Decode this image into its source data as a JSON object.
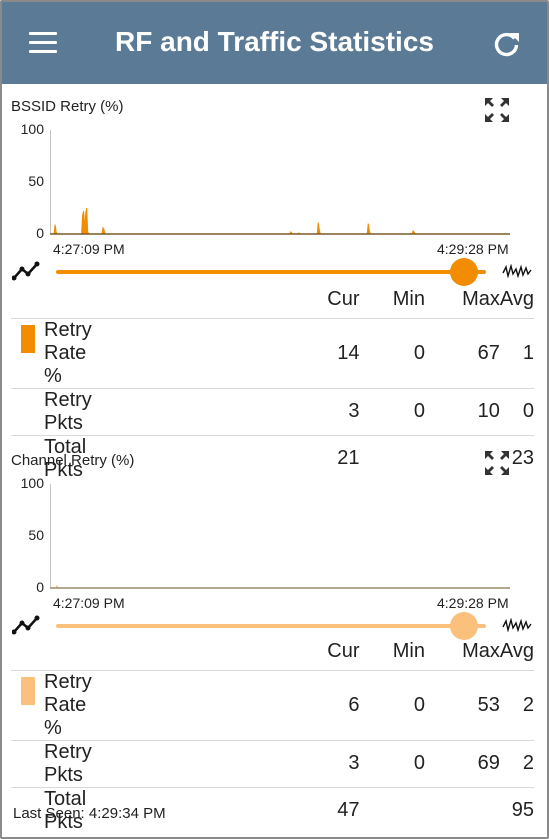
{
  "appbar": {
    "title": "RF and Traffic Statistics",
    "menu_icon": "hamburger-menu-icon",
    "refresh_icon": "refresh-icon"
  },
  "colors": {
    "appbar": "#5b7a96",
    "bssid_series": "#f28c00",
    "channel_series": "#fbc07c"
  },
  "bssid": {
    "chart_title": "BSSID Retry (%)",
    "y_ticks": [
      "100",
      "50",
      "0"
    ],
    "x_start": "4:27:09 PM",
    "x_end": "4:29:28 PM",
    "columns": [
      "Cur",
      "Min",
      "Max",
      "Avg"
    ],
    "rows": [
      {
        "label": "Retry Rate %",
        "cur": "14",
        "min": "0",
        "max": "67",
        "avg": "1"
      },
      {
        "label": "Retry Pkts",
        "cur": "3",
        "min": "0",
        "max": "10",
        "avg": "0"
      },
      {
        "label": "Total Pkts",
        "cur": "21",
        "min": "",
        "max": "",
        "avg": "23"
      }
    ]
  },
  "channel": {
    "chart_title": "Channel Retry (%)",
    "y_ticks": [
      "100",
      "50",
      "0"
    ],
    "x_start": "4:27:09 PM",
    "x_end": "4:29:28 PM",
    "columns": [
      "Cur",
      "Min",
      "Max",
      "Avg"
    ],
    "rows": [
      {
        "label": "Retry Rate %",
        "cur": "6",
        "min": "0",
        "max": "53",
        "avg": "2"
      },
      {
        "label": "Retry Pkts",
        "cur": "3",
        "min": "0",
        "max": "69",
        "avg": "2"
      },
      {
        "label": "Total Pkts",
        "cur": "47",
        "min": "",
        "max": "",
        "avg": "95"
      }
    ]
  },
  "footer": {
    "last_seen": "Last Seen:  4:29:34 PM"
  },
  "chart_data": [
    {
      "type": "area",
      "title": "BSSID Retry (%)",
      "ylim": [
        0,
        100
      ],
      "y_ticks": [
        0,
        50,
        100
      ],
      "x_range": [
        "4:27:09 PM",
        "4:29:28 PM"
      ],
      "series": [
        {
          "values": [
            0,
            0,
            0,
            9,
            2,
            0,
            0,
            0,
            0,
            0,
            0,
            0,
            0,
            0,
            0,
            0,
            0,
            0,
            0,
            0,
            0,
            0,
            0,
            0,
            0,
            0,
            0,
            0,
            0,
            0,
            18,
            22,
            5,
            20,
            25,
            2,
            0,
            0,
            0,
            0,
            0,
            0,
            0,
            0,
            0,
            0,
            0,
            0,
            0,
            0,
            6,
            4,
            0,
            0,
            0,
            0,
            0,
            0,
            0,
            0,
            0,
            0,
            0,
            0,
            0,
            0,
            0,
            0,
            0,
            0,
            0,
            0,
            0,
            0,
            0,
            0,
            0,
            0,
            0,
            0,
            0,
            0,
            0,
            0,
            0,
            0,
            0,
            0,
            0,
            0,
            0,
            0,
            0,
            0,
            0,
            0,
            0,
            0,
            0,
            0,
            0,
            0,
            0,
            0,
            0,
            0,
            0,
            0,
            0,
            0,
            0,
            0,
            0,
            0,
            0,
            0,
            0,
            0,
            0,
            0,
            0,
            0,
            0,
            0,
            0,
            0,
            0,
            0,
            0,
            0,
            0,
            0,
            0,
            0,
            0,
            0,
            0,
            0,
            0,
            0,
            0,
            0,
            0,
            0,
            0,
            0,
            0,
            0,
            0,
            0,
            0,
            0,
            0,
            0,
            0,
            0,
            0,
            0,
            0,
            0,
            0,
            0,
            0,
            0,
            0,
            0,
            0,
            0,
            0,
            0,
            0,
            0,
            0,
            0,
            0,
            0,
            0,
            0,
            0,
            0,
            0,
            0,
            0,
            0,
            0,
            0,
            0,
            0,
            0,
            0,
            0,
            0,
            0,
            0,
            0,
            0,
            0,
            0,
            0,
            0,
            0,
            0,
            0,
            0,
            0,
            0,
            0,
            0,
            0,
            0,
            0,
            0,
            0,
            0,
            0,
            0,
            0,
            0,
            0,
            0,
            0,
            0,
            0,
            0,
            0,
            0,
            0,
            0,
            0,
            0,
            0,
            0,
            0,
            0,
            2,
            1,
            0,
            0,
            0,
            0,
            0,
            0,
            1,
            0,
            0,
            0,
            0,
            0,
            0,
            0,
            0,
            0,
            0,
            0,
            0,
            0,
            0,
            0,
            0,
            0,
            0,
            11,
            4,
            0,
            0,
            0,
            0,
            0,
            0,
            0,
            0,
            0,
            0,
            0,
            0,
            0,
            0,
            0,
            0,
            0,
            0,
            0,
            0,
            0,
            0,
            0,
            0,
            0,
            0,
            0,
            0,
            0,
            0,
            0,
            0,
            0,
            0,
            0,
            0,
            0,
            0,
            0,
            0,
            0,
            0,
            0,
            0,
            0,
            0,
            0,
            10,
            4,
            0,
            0,
            0,
            0,
            0,
            0,
            0,
            0,
            0,
            0,
            0,
            0,
            0,
            0,
            0,
            0,
            0,
            0,
            0,
            0,
            0,
            0,
            0,
            0,
            0,
            0,
            0,
            0,
            0,
            0,
            0,
            0,
            0,
            0,
            0,
            0,
            0,
            0,
            0,
            0,
            0,
            0,
            3,
            2,
            0,
            0,
            0,
            0,
            0,
            0,
            0,
            0,
            0,
            0,
            0,
            0,
            0,
            0,
            0,
            0,
            0,
            0,
            0,
            0,
            0,
            0,
            0,
            0,
            0,
            0,
            0,
            0,
            0,
            0,
            0,
            0,
            0,
            0,
            0,
            0,
            0,
            0,
            0,
            0,
            0,
            0,
            0,
            0,
            0,
            0,
            0,
            0,
            0,
            0,
            0,
            0,
            0,
            0,
            0,
            0,
            0,
            0,
            0,
            0,
            0,
            0,
            0,
            0,
            0,
            0,
            0,
            0,
            0,
            0,
            0,
            0,
            0,
            0,
            0,
            0,
            0,
            0,
            0,
            0,
            0,
            0,
            0,
            0,
            0,
            0,
            0,
            0,
            0,
            0,
            0,
            0,
            0,
            0
          ]
        }
      ]
    },
    {
      "type": "area",
      "title": "Channel Retry (%)",
      "ylim": [
        0,
        100
      ],
      "y_ticks": [
        0,
        50,
        100
      ],
      "x_range": [
        "4:27:09 PM",
        "4:29:28 PM"
      ],
      "series": [
        {
          "values": [
            0,
            0,
            0,
            0,
            0,
            2,
            0,
            0,
            0,
            0,
            0,
            0,
            0,
            0,
            0,
            0,
            0,
            0,
            0,
            0,
            0,
            0,
            0,
            0,
            0,
            0,
            0,
            0,
            0,
            0,
            0,
            0,
            0,
            0,
            0,
            0,
            0,
            0,
            0,
            0,
            0,
            0,
            0,
            0,
            0,
            0,
            0,
            0,
            0,
            0,
            0,
            0,
            0,
            0,
            0,
            0,
            0,
            0,
            0,
            0,
            0,
            0,
            0,
            0,
            0,
            0,
            0,
            0,
            0,
            0,
            0,
            0,
            0,
            0,
            0,
            0,
            0,
            0,
            0,
            0,
            0,
            0,
            0,
            0,
            0,
            0,
            0,
            0,
            0,
            0,
            0,
            0,
            0,
            0,
            0,
            0,
            0,
            0,
            0,
            0,
            0,
            0,
            0,
            0,
            0,
            0,
            0,
            0,
            0,
            0,
            0,
            0,
            0,
            0,
            0,
            0,
            0,
            0,
            0,
            0,
            0,
            0,
            0,
            0,
            0,
            0,
            0,
            0,
            0,
            0,
            0,
            0,
            0,
            0,
            0,
            0,
            0,
            0,
            0,
            0,
            0,
            0,
            0,
            0,
            0,
            0,
            0,
            0,
            0,
            0,
            0,
            0,
            0,
            0,
            0,
            0,
            0,
            0,
            0,
            0,
            0,
            0,
            0,
            0,
            0,
            0,
            0,
            0,
            0,
            0,
            0,
            0,
            0,
            0,
            0,
            0,
            0,
            0,
            0,
            0,
            0,
            0,
            0,
            0,
            0,
            0,
            0,
            0,
            0,
            0,
            0,
            0,
            0,
            0,
            0,
            0,
            0,
            0,
            0,
            0,
            0,
            0,
            0,
            0,
            0,
            0,
            0,
            0,
            0,
            0,
            0,
            0,
            0,
            0,
            0,
            0,
            0,
            0,
            0,
            0,
            0,
            0,
            0,
            0,
            0,
            0,
            0,
            0,
            0,
            0,
            0,
            0,
            0,
            0,
            0,
            0,
            0,
            0,
            0,
            0,
            0,
            0,
            0,
            0,
            0,
            0,
            0,
            0,
            0,
            0,
            0,
            0,
            0,
            0,
            0,
            0,
            0,
            0,
            0,
            0,
            0,
            0,
            0,
            0,
            0,
            0,
            0,
            0,
            0,
            0,
            0,
            0,
            0,
            0,
            0,
            0,
            0,
            0,
            0,
            0,
            0,
            0,
            0,
            0,
            0,
            0,
            0,
            0,
            0,
            0,
            0,
            0,
            0,
            0,
            0,
            0,
            0,
            0,
            0,
            0,
            0,
            0,
            0,
            0,
            0,
            0,
            0,
            0,
            0,
            0,
            0,
            0,
            0,
            0,
            0,
            0,
            0,
            0,
            0,
            0,
            0,
            0,
            0,
            0,
            0,
            0,
            0,
            0,
            0,
            0,
            0,
            0,
            0,
            0,
            0,
            0,
            0,
            0,
            0,
            0,
            0,
            0,
            0,
            0,
            0,
            0,
            0,
            0,
            0,
            0,
            0,
            0,
            0,
            0,
            0,
            0,
            0,
            0,
            0,
            0,
            0,
            0,
            0,
            0,
            0,
            0,
            0,
            0,
            0,
            0,
            0,
            0,
            0,
            0,
            0,
            0,
            0,
            0,
            0,
            0,
            0,
            0,
            0,
            0,
            0,
            0,
            0,
            0,
            0,
            0,
            0,
            0,
            0,
            0,
            0,
            0,
            0,
            0,
            0,
            0,
            0,
            0,
            0,
            0,
            0,
            0,
            0,
            0,
            0,
            0,
            0,
            0,
            0,
            0,
            0,
            0,
            0,
            0,
            0,
            0,
            0,
            0,
            0,
            0,
            0,
            0,
            0,
            0,
            0,
            0,
            0,
            0,
            0,
            0,
            0,
            0,
            0,
            0,
            0,
            0,
            0,
            0,
            0,
            0,
            0,
            0,
            0,
            0,
            0,
            0,
            0,
            0,
            0,
            0,
            0,
            0,
            0,
            0,
            0,
            0,
            0,
            0,
            0,
            0,
            0,
            0,
            0,
            0,
            0
          ]
        }
      ]
    }
  ]
}
